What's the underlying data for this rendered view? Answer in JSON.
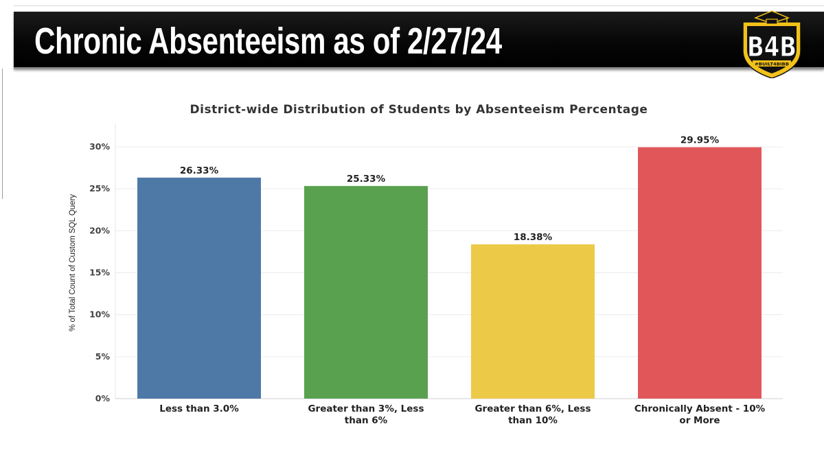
{
  "header": {
    "title": "Chronic Absenteeism as of 2/27/24",
    "logo_text": "B4B",
    "logo_subtext": "#BUILT4BIBB",
    "logo_colors": {
      "shield": "#f2c21a",
      "inner": "#111111",
      "text": "#ffffff"
    }
  },
  "chart_data": {
    "type": "bar",
    "title": "District-wide Distribution of Students by Absenteeism Percentage",
    "ylabel": "% of Total Count of Custom SQL Query",
    "xlabel": "",
    "ylim": [
      0,
      30
    ],
    "yticks": [
      "0%",
      "5%",
      "10%",
      "15%",
      "20%",
      "25%",
      "30%"
    ],
    "ytick_values": [
      0,
      5,
      10,
      15,
      20,
      25,
      30
    ],
    "grid": true,
    "categories": [
      "Less than 3.0%",
      "Greater than 3%, Less than 6%",
      "Greater than 6%, Less than 10%",
      "Chronically Absent - 10% or More"
    ],
    "category_lines": [
      [
        "Less than 3.0%"
      ],
      [
        "Greater than 3%, Less",
        "than 6%"
      ],
      [
        "Greater than 6%, Less",
        "than 10%"
      ],
      [
        "Chronically Absent - 10%",
        "or More"
      ]
    ],
    "values": [
      26.33,
      25.33,
      18.38,
      29.95
    ],
    "data_labels": [
      "26.33%",
      "25.33%",
      "18.38%",
      "29.95%"
    ],
    "colors": [
      "#4e79a7",
      "#59a14f",
      "#edc948",
      "#e15759"
    ]
  }
}
